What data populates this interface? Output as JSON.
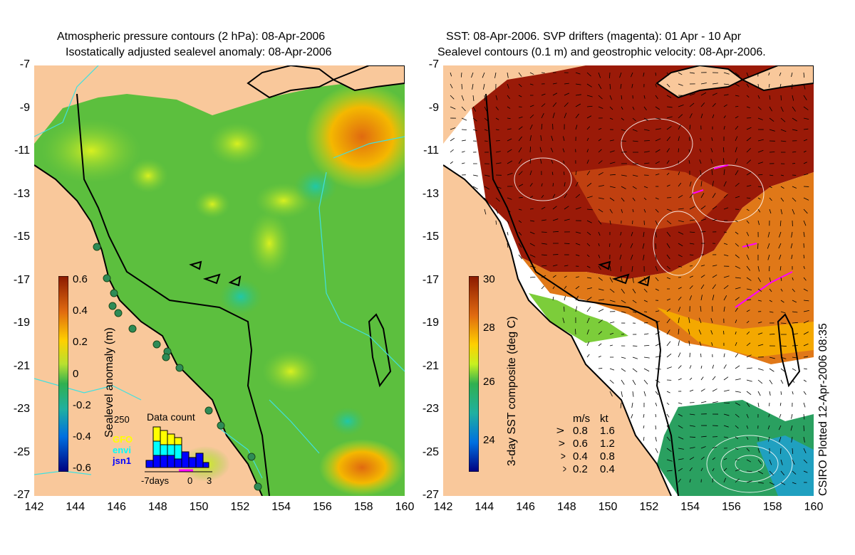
{
  "left_panel": {
    "title_line1": "Atmospheric pressure contours (2 hPa): 08-Apr-2006",
    "title_line2": "Isostatically adjusted sealevel anomaly: 08-Apr-2006",
    "colorbar_label": "Sealevel anomaly (m)",
    "colorbar_ticks": [
      "0.6",
      "0.4",
      "0.2",
      "0",
      "-0.2",
      "-0.4",
      "-0.6"
    ],
    "data_count": {
      "title": "Data count",
      "ymax_label": "250",
      "legend": [
        {
          "name": "GFO",
          "color": "#ffff00"
        },
        {
          "name": "envi",
          "color": "#00ffff"
        },
        {
          "name": "jsn1",
          "color": "#0000ff"
        }
      ],
      "x_labels": [
        "-7days",
        "0",
        "3"
      ]
    }
  },
  "right_panel": {
    "title_line1": "SST: 08-Apr-2006. SVP drifters (magenta): 01 Apr - 10 Apr",
    "title_line2": "Sealevel contours (0.1 m) and geostrophic velocity: 08-Apr-2006.",
    "colorbar_label": "3-day SST composite (deg C)",
    "colorbar_ticks": [
      "30",
      "28",
      "26",
      "24"
    ],
    "velocity_legend": {
      "header_ms": "m/s",
      "header_kt": "kt",
      "rows": [
        {
          "ms": "0.8",
          "kt": "1.6"
        },
        {
          "ms": "0.6",
          "kt": "1.2"
        },
        {
          "ms": "0.4",
          "kt": "0.8"
        },
        {
          "ms": "0.2",
          "kt": "0.4"
        }
      ]
    }
  },
  "axes": {
    "y_ticks": [
      "-7",
      "-9",
      "-11",
      "-13",
      "-15",
      "-17",
      "-19",
      "-21",
      "-23",
      "-25",
      "-27"
    ],
    "x_ticks": [
      "142",
      "144",
      "146",
      "148",
      "150",
      "152",
      "154",
      "156",
      "158",
      "160"
    ]
  },
  "credit": "CSIRO Plotted 12-Apr-2006 08:35",
  "colors": {
    "land": "#f9c89b",
    "coast": "#000000",
    "cyan_contour": "#40e0e0"
  }
}
